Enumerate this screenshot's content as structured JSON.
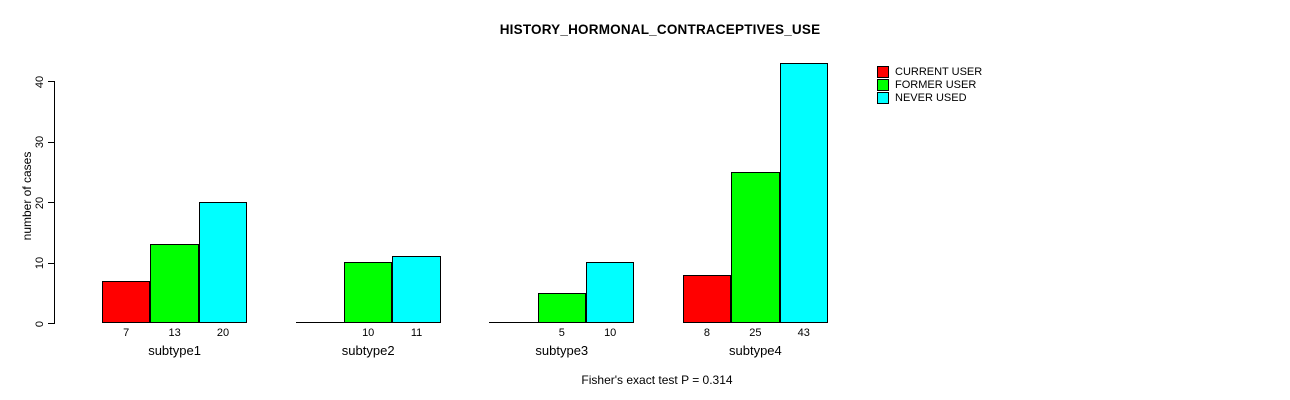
{
  "chart_data": {
    "type": "bar",
    "title": "HISTORY_HORMONAL_CONTRACEPTIVES_USE",
    "xlabel": "",
    "ylabel": "number of cases",
    "categories": [
      "subtype1",
      "subtype2",
      "subtype3",
      "subtype4"
    ],
    "series": [
      {
        "name": "CURRENT USER",
        "color": "#ff0000",
        "values": [
          7,
          0,
          0,
          8
        ]
      },
      {
        "name": "FORMER USER",
        "color": "#00ff00",
        "values": [
          13,
          10,
          5,
          25
        ]
      },
      {
        "name": "NEVER USED",
        "color": "#00ffff",
        "values": [
          20,
          11,
          10,
          43
        ]
      }
    ],
    "bar_value_labels_shown": true,
    "zero_value_labels_hidden": true,
    "yticks": [
      0,
      10,
      20,
      30,
      40
    ],
    "ylim": [
      0,
      43
    ],
    "grid": false,
    "legend_position": "right-outside",
    "annotation": "Fisher's exact test P = 0.314",
    "bar_border_color": "#000000",
    "background_color": "#ffffff"
  }
}
